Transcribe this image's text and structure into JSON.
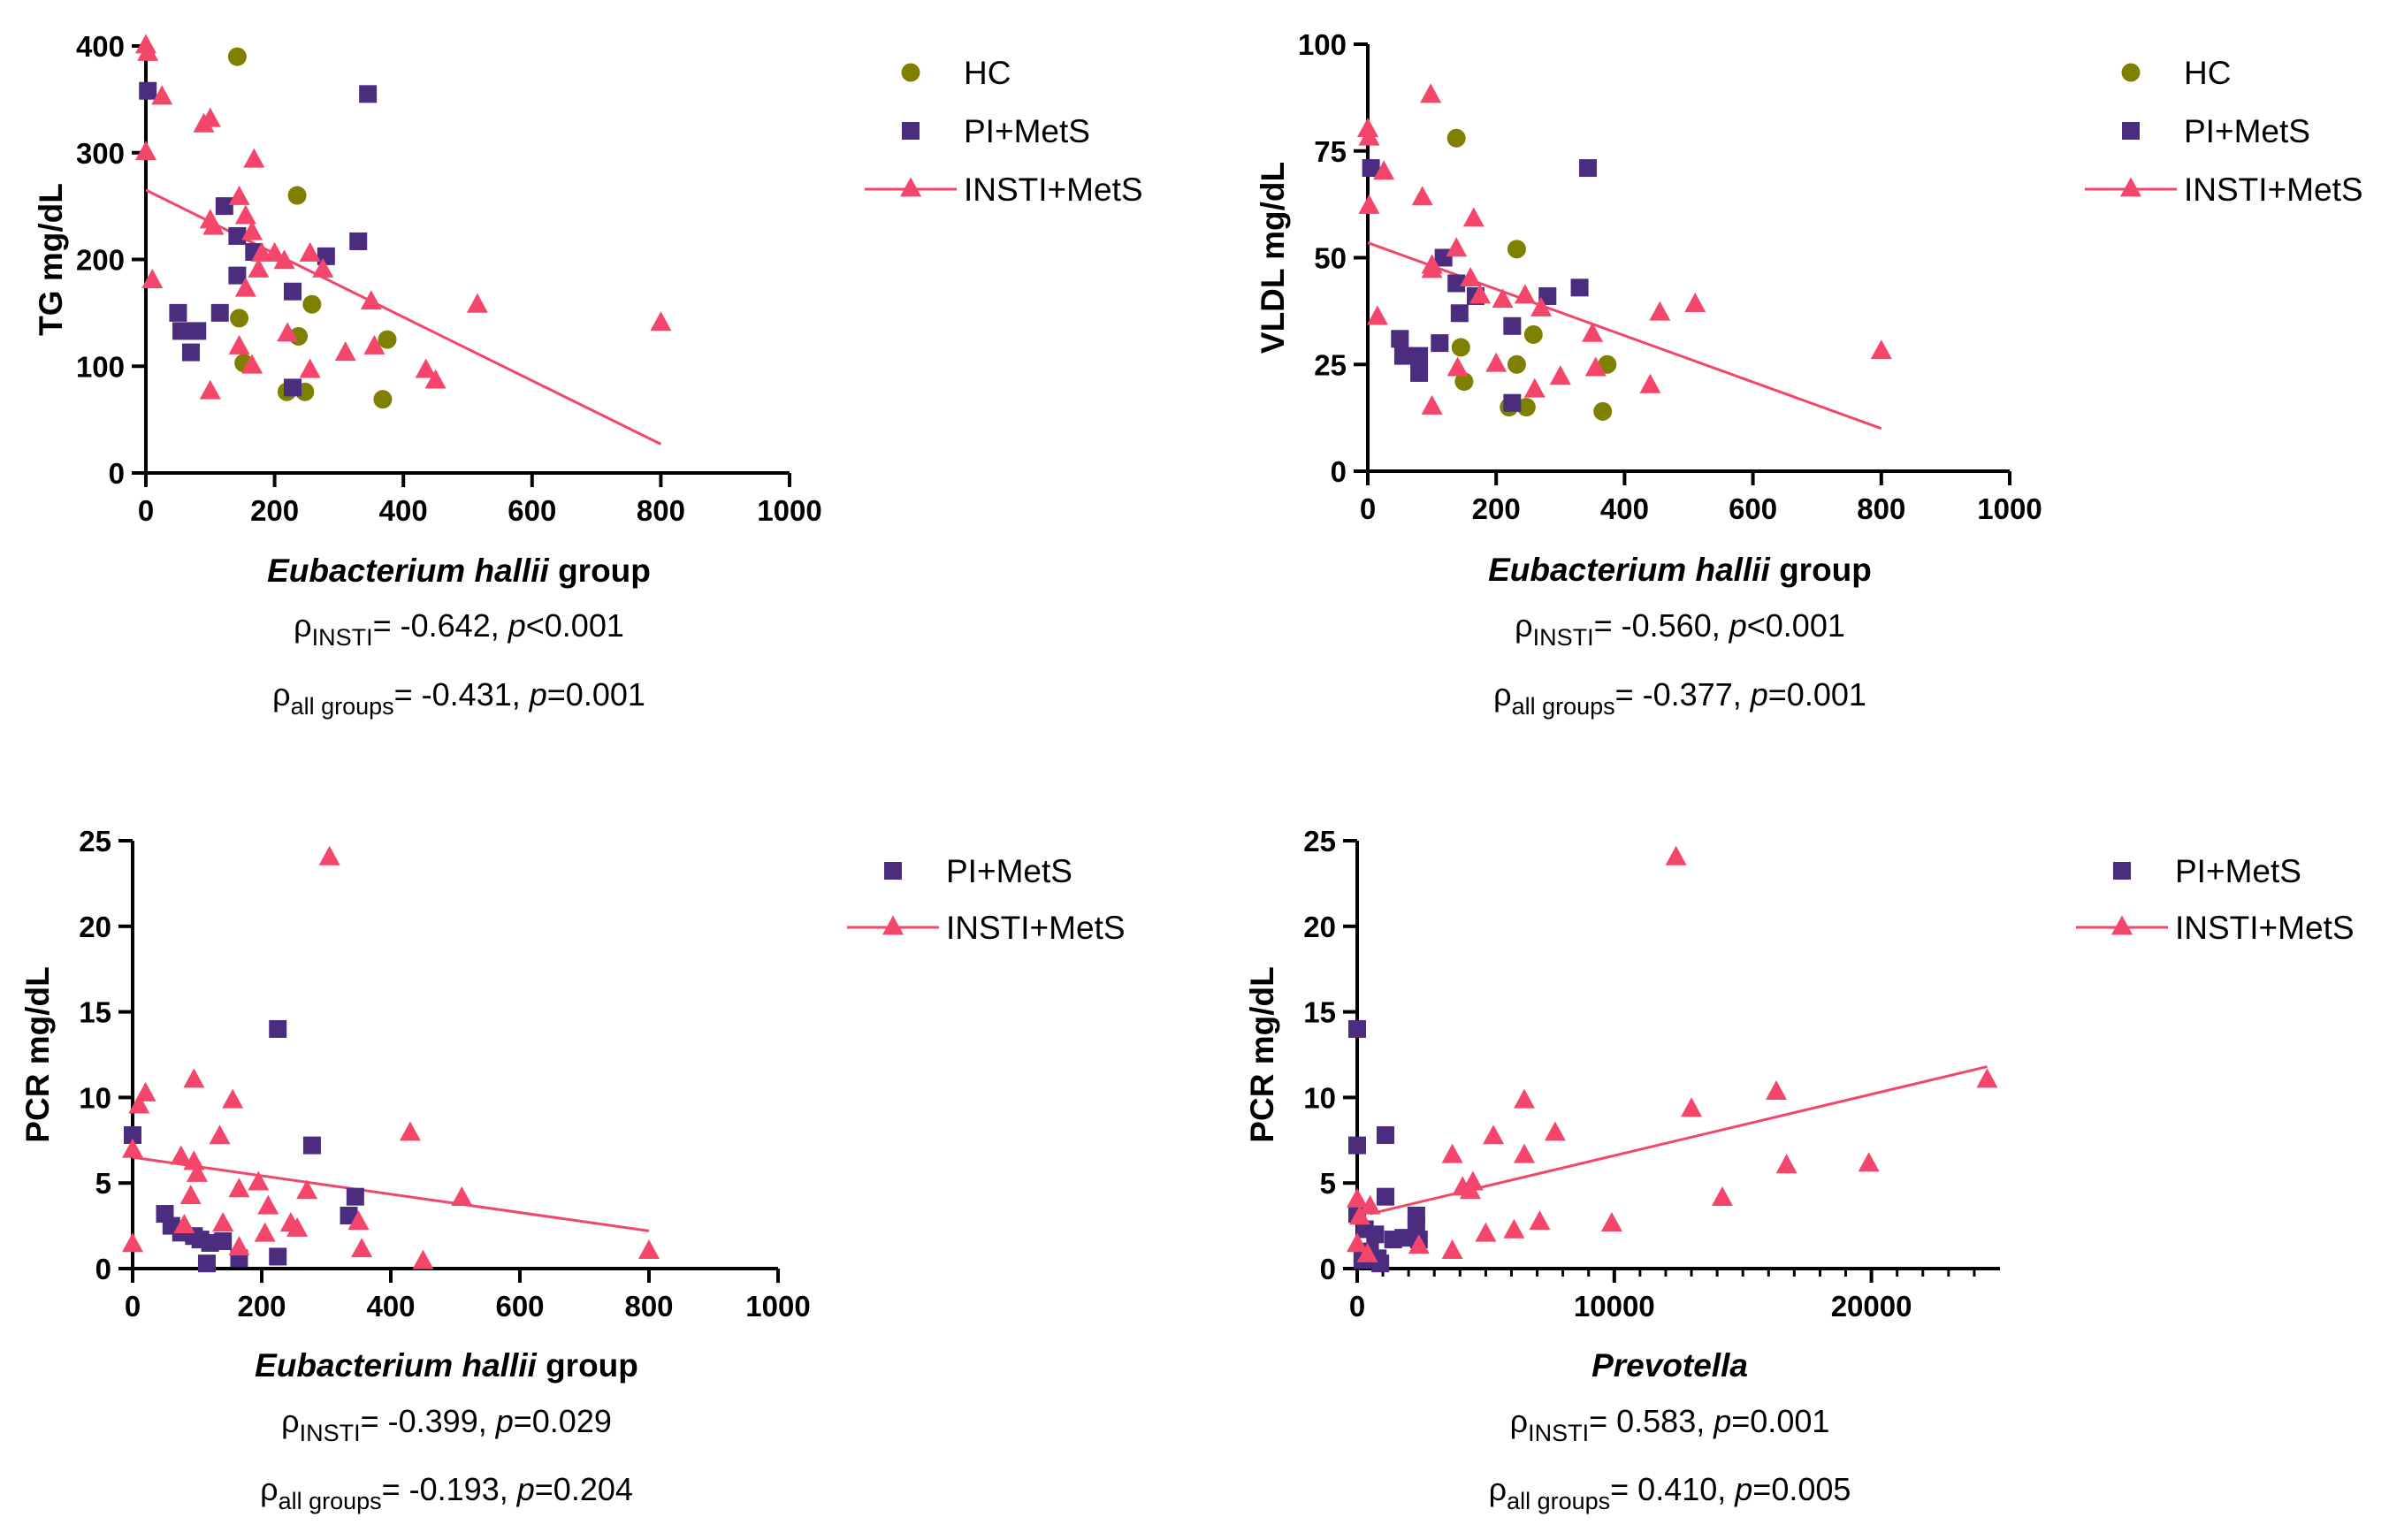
{
  "chart_data": [
    {
      "type": "scatter",
      "ylabel": "TG mg/dL",
      "xlabel_italic": "Eubacterium hallii",
      "xlabel_suffix": " group",
      "x_range": [
        0,
        1000
      ],
      "y_range": [
        0,
        400
      ],
      "x_ticks": [
        0,
        200,
        400,
        600,
        800,
        1000
      ],
      "y_ticks": [
        0,
        100,
        200,
        300,
        400
      ],
      "legend": [
        "HC",
        "PI+MetS",
        "INSTI+MetS"
      ],
      "stats": [
        {
          "rho": "ρ",
          "sub": "INSTI",
          "value": "= -0.642, ",
          "p_label": "p",
          "p_value": "<0.001"
        },
        {
          "rho": "ρ",
          "sub": "all groups",
          "value": "= -0.431, ",
          "p_label": "p",
          "p_value": "=0.001"
        }
      ],
      "regression": {
        "series": "INSTI+MetS",
        "x": [
          0,
          800
        ],
        "y": [
          265,
          27
        ]
      },
      "series": [
        {
          "name": "HC",
          "marker": "circle",
          "color": "#808000",
          "points": [
            [
              142,
              390
            ],
            [
              235,
              260
            ],
            [
              145,
              145
            ],
            [
              258,
              158
            ],
            [
              237,
              128
            ],
            [
              375,
              125
            ],
            [
              152,
              103
            ],
            [
              219,
              76
            ],
            [
              247,
              76
            ],
            [
              368,
              69
            ]
          ]
        },
        {
          "name": "PI+MetS",
          "marker": "square",
          "color": "#4b2c7f",
          "points": [
            [
              3,
              358
            ],
            [
              345,
              355
            ],
            [
              122,
              250
            ],
            [
              142,
              222
            ],
            [
              330,
              217
            ],
            [
              168,
              207
            ],
            [
              280,
              203
            ],
            [
              142,
              185
            ],
            [
              228,
              170
            ],
            [
              50,
              150
            ],
            [
              115,
              150
            ],
            [
              55,
              133
            ],
            [
              80,
              133
            ],
            [
              70,
              113
            ],
            [
              228,
              80
            ]
          ]
        },
        {
          "name": "INSTI+MetS",
          "marker": "triangle",
          "color": "#f4466a",
          "points": [
            [
              0,
              400
            ],
            [
              3,
              393
            ],
            [
              25,
              352
            ],
            [
              100,
              331
            ],
            [
              90,
              326
            ],
            [
              0,
              300
            ],
            [
              168,
              293
            ],
            [
              100,
              236
            ],
            [
              145,
              258
            ],
            [
              155,
              240
            ],
            [
              105,
              230
            ],
            [
              165,
              225
            ],
            [
              180,
              205
            ],
            [
              200,
              205
            ],
            [
              255,
              205
            ],
            [
              275,
              190
            ],
            [
              215,
              198
            ],
            [
              10,
              180
            ],
            [
              175,
              190
            ],
            [
              155,
              172
            ],
            [
              350,
              160
            ],
            [
              515,
              157
            ],
            [
              800,
              140
            ],
            [
              220,
              130
            ],
            [
              310,
              112
            ],
            [
              355,
              118
            ],
            [
              145,
              118
            ],
            [
              165,
              100
            ],
            [
              255,
              96
            ],
            [
              435,
              96
            ],
            [
              450,
              86
            ],
            [
              100,
              76
            ]
          ]
        }
      ]
    },
    {
      "type": "scatter",
      "ylabel": "VLDL mg/dL",
      "xlabel_italic": "Eubacterium hallii",
      "xlabel_suffix": " group",
      "x_range": [
        0,
        1000
      ],
      "y_range": [
        0,
        100
      ],
      "x_ticks": [
        0,
        200,
        400,
        600,
        800,
        1000
      ],
      "y_ticks": [
        0,
        25,
        50,
        75,
        100
      ],
      "legend": [
        "HC",
        "PI+MetS",
        "INSTI+MetS"
      ],
      "stats": [
        {
          "rho": "ρ",
          "sub": "INSTI",
          "value": "= -0.560, ",
          "p_label": "p",
          "p_value": "<0.001"
        },
        {
          "rho": "ρ",
          "sub": "all groups",
          "value": "= -0.377, ",
          "p_label": "p",
          "p_value": "=0.001"
        }
      ],
      "regression": {
        "series": "INSTI+MetS",
        "x": [
          0,
          800
        ],
        "y": [
          53.5,
          10
        ]
      },
      "series": [
        {
          "name": "HC",
          "marker": "circle",
          "color": "#808000",
          "points": [
            [
              138,
              78
            ],
            [
              232,
              52
            ],
            [
              258,
              32
            ],
            [
              145,
              29
            ],
            [
              232,
              25
            ],
            [
              373,
              25
            ],
            [
              150,
              21
            ],
            [
              220,
              15
            ],
            [
              247,
              15
            ],
            [
              366,
              14
            ]
          ]
        },
        {
          "name": "PI+MetS",
          "marker": "square",
          "color": "#4b2c7f",
          "points": [
            [
              5,
              71
            ],
            [
              343,
              71
            ],
            [
              118,
              50
            ],
            [
              138,
              44
            ],
            [
              330,
              43
            ],
            [
              168,
              41
            ],
            [
              280,
              41
            ],
            [
              143,
              37
            ],
            [
              225,
              34
            ],
            [
              50,
              31
            ],
            [
              112,
              30
            ],
            [
              55,
              27
            ],
            [
              80,
              27
            ],
            [
              80,
              23
            ],
            [
              225,
              16
            ]
          ]
        },
        {
          "name": "INSTI+MetS",
          "marker": "triangle",
          "color": "#f4466a",
          "points": [
            [
              0,
              80
            ],
            [
              2,
              78
            ],
            [
              98,
              88
            ],
            [
              25,
              70
            ],
            [
              2,
              62
            ],
            [
              85,
              64
            ],
            [
              165,
              59
            ],
            [
              138,
              52
            ],
            [
              100,
              47
            ],
            [
              100,
              48
            ],
            [
              160,
              45
            ],
            [
              175,
              41
            ],
            [
              210,
              40
            ],
            [
              245,
              41
            ],
            [
              270,
              38
            ],
            [
              350,
              32
            ],
            [
              455,
              37
            ],
            [
              510,
              39
            ],
            [
              15,
              36
            ],
            [
              800,
              28
            ],
            [
              200,
              25
            ],
            [
              140,
              24
            ],
            [
              355,
              24
            ],
            [
              300,
              22
            ],
            [
              260,
              19
            ],
            [
              440,
              20
            ],
            [
              100,
              15
            ]
          ]
        }
      ]
    },
    {
      "type": "scatter",
      "ylabel": "PCR mg/dL",
      "xlabel_italic": "Eubacterium hallii",
      "xlabel_suffix": " group",
      "x_range": [
        0,
        1000
      ],
      "y_range": [
        0,
        25
      ],
      "x_ticks": [
        0,
        200,
        400,
        600,
        800,
        1000
      ],
      "y_ticks": [
        0,
        5,
        10,
        15,
        20,
        25
      ],
      "legend": [
        "PI+MetS",
        "INSTI+MetS"
      ],
      "stats": [
        {
          "rho": "ρ",
          "sub": "INSTI",
          "value": "= -0.399, ",
          "p_label": "p",
          "p_value": "=0.029"
        },
        {
          "rho": "ρ",
          "sub": "all groups",
          "value": "= -0.193, ",
          "p_label": "p",
          "p_value": "=0.204"
        }
      ],
      "regression": {
        "series": "INSTI+MetS",
        "x": [
          0,
          800
        ],
        "y": [
          6.5,
          2.2
        ]
      },
      "series": [
        {
          "name": "PI+MetS",
          "marker": "square",
          "color": "#4b2c7f",
          "points": [
            [
              0,
              7.8
            ],
            [
              225,
              14
            ],
            [
              278,
              7.2
            ],
            [
              345,
              4.2
            ],
            [
              335,
              3.1
            ],
            [
              50,
              3.2
            ],
            [
              60,
              2.5
            ],
            [
              75,
              2.1
            ],
            [
              95,
              1.9
            ],
            [
              105,
              1.7
            ],
            [
              120,
              1.5
            ],
            [
              140,
              1.6
            ],
            [
              165,
              0.6
            ],
            [
              225,
              0.7
            ],
            [
              115,
              0.3
            ]
          ]
        },
        {
          "name": "INSTI+MetS",
          "marker": "triangle",
          "color": "#f4466a",
          "points": [
            [
              305,
              24
            ],
            [
              95,
              11
            ],
            [
              20,
              10.2
            ],
            [
              10,
              9.5
            ],
            [
              155,
              9.8
            ],
            [
              430,
              7.9
            ],
            [
              135,
              7.7
            ],
            [
              0,
              6.9
            ],
            [
              75,
              6.5
            ],
            [
              95,
              6.2
            ],
            [
              100,
              5.5
            ],
            [
              195,
              5
            ],
            [
              165,
              4.6
            ],
            [
              270,
              4.5
            ],
            [
              90,
              4.2
            ],
            [
              210,
              3.6
            ],
            [
              510,
              4.1
            ],
            [
              245,
              2.6
            ],
            [
              255,
              2.3
            ],
            [
              350,
              2.7
            ],
            [
              140,
              2.6
            ],
            [
              205,
              2
            ],
            [
              80,
              2.5
            ],
            [
              165,
              1.2
            ],
            [
              355,
              1.1
            ],
            [
              0,
              1.4
            ],
            [
              800,
              1
            ],
            [
              450,
              0.4
            ]
          ]
        }
      ]
    },
    {
      "type": "scatter",
      "ylabel": "PCR mg/dL",
      "xlabel_italic": "Prevotella",
      "xlabel_suffix": "",
      "x_range": [
        0,
        25000
      ],
      "y_range": [
        0,
        25
      ],
      "x_ticks": [
        0,
        10000,
        20000
      ],
      "y_ticks": [
        0,
        5,
        10,
        15,
        20,
        25
      ],
      "legend": [
        "PI+MetS",
        "INSTI+MetS"
      ],
      "stats": [
        {
          "rho": "ρ",
          "sub": "INSTI",
          "value": "= 0.583, ",
          "p_label": "p",
          "p_value": "=0.001"
        },
        {
          "rho": "ρ",
          "sub": "all groups",
          "value": "= 0.410, ",
          "p_label": "p",
          "p_value": "=0.005"
        }
      ],
      "regression": {
        "series": "INSTI+MetS",
        "x": [
          500,
          24500
        ],
        "y": [
          3.2,
          11.8
        ]
      },
      "series": [
        {
          "name": "PI+MetS",
          "marker": "square",
          "color": "#4b2c7f",
          "points": [
            [
              0,
              14
            ],
            [
              1100,
              7.8
            ],
            [
              0,
              7.2
            ],
            [
              1100,
              4.2
            ],
            [
              0,
              3.2
            ],
            [
              2300,
              3.1
            ],
            [
              300,
              2.3
            ],
            [
              2300,
              2.5
            ],
            [
              700,
              2
            ],
            [
              1400,
              1.7
            ],
            [
              1800,
              1.8
            ],
            [
              2400,
              1.7
            ],
            [
              500,
              1
            ],
            [
              800,
              0.6
            ],
            [
              200,
              0.5
            ],
            [
              900,
              0.3
            ]
          ]
        },
        {
          "name": "INSTI+MetS",
          "marker": "triangle",
          "color": "#f4466a",
          "points": [
            [
              12400,
              24
            ],
            [
              24500,
              11
            ],
            [
              16300,
              10.3
            ],
            [
              6500,
              9.8
            ],
            [
              13000,
              9.3
            ],
            [
              7700,
              7.9
            ],
            [
              5300,
              7.7
            ],
            [
              3700,
              6.6
            ],
            [
              6500,
              6.6
            ],
            [
              16700,
              6
            ],
            [
              19900,
              6.1
            ],
            [
              4500,
              5
            ],
            [
              4100,
              4.7
            ],
            [
              4400,
              4.5
            ],
            [
              14200,
              4.1
            ],
            [
              0,
              4
            ],
            [
              500,
              3.6
            ],
            [
              100,
              3
            ],
            [
              7100,
              2.7
            ],
            [
              9900,
              2.6
            ],
            [
              6100,
              2.2
            ],
            [
              5000,
              2
            ],
            [
              2400,
              1.3
            ],
            [
              3700,
              1
            ],
            [
              0,
              1.4
            ],
            [
              400,
              0.8
            ]
          ]
        }
      ]
    }
  ]
}
